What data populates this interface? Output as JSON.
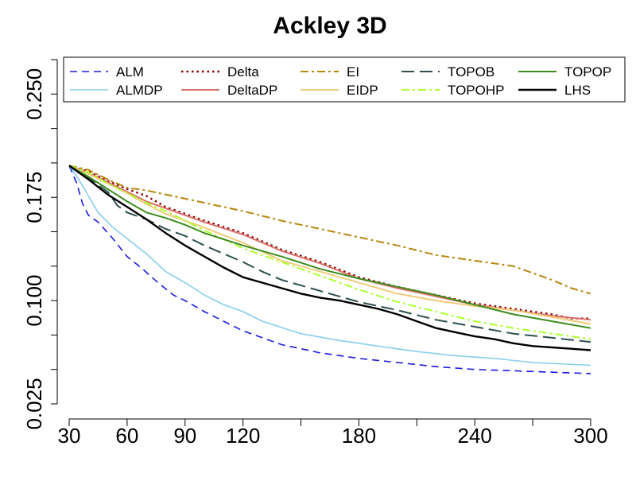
{
  "chart_data": {
    "type": "line",
    "title": "Ackley 3D",
    "xlabel": "",
    "ylabel": "",
    "xlim": [
      30,
      300
    ],
    "ylim": [
      0.025,
      0.275
    ],
    "x_ticks": [
      30,
      60,
      90,
      120,
      150,
      180,
      210,
      240,
      270,
      300
    ],
    "x_tick_labels": [
      "30",
      "60",
      "90",
      "120",
      "",
      "180",
      "",
      "240",
      "",
      "300"
    ],
    "y_ticks": [
      0.025,
      0.05,
      0.075,
      0.1,
      0.125,
      0.15,
      0.175,
      0.2,
      0.225,
      0.25,
      0.275
    ],
    "y_tick_labels": [
      "0.025",
      "",
      "",
      "0.100",
      "",
      "",
      "0.175",
      "",
      "",
      "0.250",
      ""
    ],
    "grid": false,
    "legend_position": "top",
    "series": [
      {
        "name": "ALM",
        "color": "#1a1ae6",
        "dash": "dashed",
        "width": 1.6,
        "x": [
          30,
          34,
          37,
          40,
          45,
          52,
          60,
          68,
          76,
          84,
          90,
          100,
          110,
          120,
          140,
          160,
          180,
          200,
          220,
          240,
          260,
          280,
          300
        ],
        "y": [
          0.198,
          0.185,
          0.17,
          0.162,
          0.157,
          0.146,
          0.132,
          0.123,
          0.113,
          0.104,
          0.1,
          0.092,
          0.085,
          0.078,
          0.068,
          0.062,
          0.058,
          0.055,
          0.052,
          0.05,
          0.049,
          0.048,
          0.047
        ]
      },
      {
        "name": "ALMDP",
        "color": "#87ceeb",
        "dash": "solid",
        "width": 1.6,
        "x": [
          30,
          35,
          40,
          45,
          52,
          60,
          70,
          80,
          90,
          100,
          110,
          120,
          130,
          150,
          170,
          190,
          210,
          230,
          250,
          270,
          300
        ],
        "y": [
          0.198,
          0.188,
          0.176,
          0.164,
          0.154,
          0.145,
          0.134,
          0.121,
          0.113,
          0.104,
          0.097,
          0.092,
          0.085,
          0.076,
          0.071,
          0.067,
          0.063,
          0.06,
          0.058,
          0.055,
          0.053
        ]
      },
      {
        "name": "Delta",
        "color": "#8b0000",
        "dash": "dotted",
        "width": 2.4,
        "x": [
          30,
          40,
          50,
          60,
          70,
          80,
          90,
          100,
          120,
          140,
          160,
          180,
          200,
          220,
          240,
          260,
          280,
          290,
          300
        ],
        "y": [
          0.198,
          0.194,
          0.187,
          0.181,
          0.176,
          0.168,
          0.163,
          0.158,
          0.149,
          0.137,
          0.128,
          0.117,
          0.11,
          0.104,
          0.098,
          0.094,
          0.09,
          0.087,
          0.087
        ]
      },
      {
        "name": "DeltaDP",
        "color": "#d9706a",
        "dash": "solid",
        "width": 2.0,
        "x": [
          30,
          40,
          50,
          60,
          70,
          80,
          90,
          100,
          120,
          140,
          160,
          180,
          200,
          220,
          240,
          260,
          280,
          300
        ],
        "y": [
          0.198,
          0.193,
          0.186,
          0.179,
          0.172,
          0.167,
          0.162,
          0.157,
          0.148,
          0.136,
          0.127,
          0.116,
          0.109,
          0.103,
          0.097,
          0.093,
          0.089,
          0.086
        ]
      },
      {
        "name": "EI",
        "color": "#b8860b",
        "dash": "dashdot",
        "width": 2.0,
        "x": [
          30,
          40,
          50,
          60,
          70,
          80,
          90,
          100,
          120,
          140,
          160,
          180,
          200,
          220,
          240,
          260,
          280,
          290,
          300
        ],
        "y": [
          0.198,
          0.195,
          0.188,
          0.182,
          0.18,
          0.177,
          0.174,
          0.171,
          0.165,
          0.158,
          0.152,
          0.146,
          0.14,
          0.133,
          0.129,
          0.125,
          0.115,
          0.109,
          0.105
        ]
      },
      {
        "name": "EIDP",
        "color": "#f0cc7a",
        "dash": "solid",
        "width": 2.0,
        "x": [
          30,
          40,
          50,
          60,
          70,
          80,
          90,
          100,
          120,
          140,
          160,
          180,
          200,
          220,
          240,
          260,
          280,
          300
        ],
        "y": [
          0.198,
          0.192,
          0.185,
          0.178,
          0.17,
          0.163,
          0.158,
          0.153,
          0.142,
          0.129,
          0.121,
          0.113,
          0.105,
          0.1,
          0.096,
          0.093,
          0.088,
          0.083
        ]
      },
      {
        "name": "TOPOB",
        "color": "#2f4f4f",
        "dash": "longdash",
        "width": 2.0,
        "x": [
          30,
          40,
          50,
          55,
          60,
          70,
          80,
          90,
          100,
          110,
          120,
          130,
          140,
          150,
          160,
          180,
          200,
          220,
          240,
          260,
          280,
          300
        ],
        "y": [
          0.198,
          0.189,
          0.179,
          0.169,
          0.164,
          0.159,
          0.152,
          0.147,
          0.14,
          0.134,
          0.128,
          0.121,
          0.115,
          0.111,
          0.107,
          0.099,
          0.093,
          0.086,
          0.081,
          0.076,
          0.073,
          0.07
        ]
      },
      {
        "name": "TOPOHP",
        "color": "#adff2f",
        "dash": "dashdot",
        "width": 2.0,
        "x": [
          30,
          40,
          50,
          60,
          70,
          80,
          90,
          100,
          120,
          140,
          160,
          180,
          200,
          220,
          240,
          260,
          280,
          300
        ],
        "y": [
          0.198,
          0.193,
          0.185,
          0.178,
          0.171,
          0.165,
          0.158,
          0.151,
          0.138,
          0.128,
          0.118,
          0.108,
          0.099,
          0.092,
          0.085,
          0.08,
          0.076,
          0.072
        ]
      },
      {
        "name": "TOPOP",
        "color": "#3c8c1e",
        "dash": "solid",
        "width": 2.0,
        "x": [
          30,
          40,
          50,
          60,
          70,
          80,
          90,
          100,
          120,
          140,
          160,
          180,
          200,
          220,
          240,
          260,
          280,
          300
        ],
        "y": [
          0.198,
          0.19,
          0.181,
          0.172,
          0.164,
          0.16,
          0.155,
          0.149,
          0.14,
          0.132,
          0.123,
          0.116,
          0.11,
          0.104,
          0.097,
          0.09,
          0.085,
          0.08
        ]
      },
      {
        "name": "LHS",
        "color": "#000000",
        "dash": "solid",
        "width": 2.4,
        "x": [
          30,
          40,
          50,
          60,
          70,
          80,
          90,
          100,
          110,
          120,
          130,
          140,
          150,
          160,
          170,
          180,
          190,
          200,
          210,
          220,
          230,
          240,
          250,
          260,
          270,
          280,
          290,
          300
        ],
        "y": [
          0.198,
          0.188,
          0.177,
          0.168,
          0.159,
          0.149,
          0.14,
          0.132,
          0.124,
          0.117,
          0.113,
          0.109,
          0.105,
          0.102,
          0.1,
          0.097,
          0.094,
          0.09,
          0.085,
          0.08,
          0.077,
          0.074,
          0.072,
          0.069,
          0.067,
          0.066,
          0.065,
          0.064
        ]
      }
    ]
  }
}
